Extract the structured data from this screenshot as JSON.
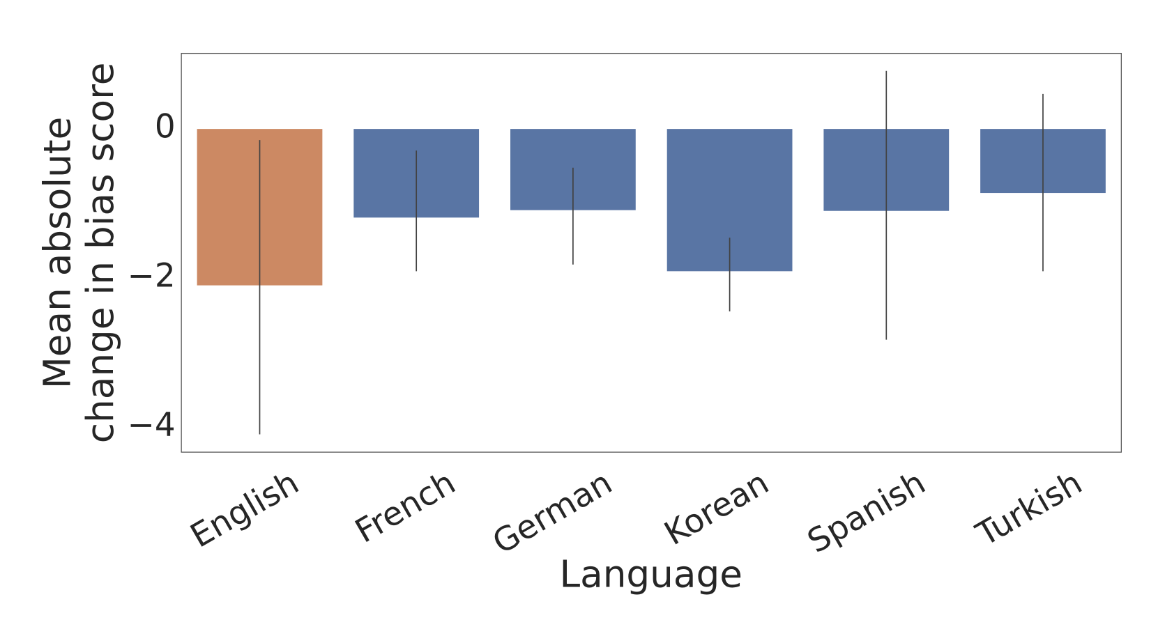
{
  "chart_data": {
    "type": "bar",
    "x_label": "Language",
    "y_label": [
      "Mean absolute",
      "change in bias score"
    ],
    "categories": [
      "English",
      "French",
      "German",
      "Korean",
      "Spanish",
      "Turkish"
    ],
    "values": [
      -2.1,
      -1.19,
      -1.09,
      -1.91,
      -1.1,
      -0.86
    ],
    "ci_low": [
      -4.1,
      -1.91,
      -1.82,
      -2.45,
      -2.83,
      -1.91
    ],
    "ci_high": [
      -0.15,
      -0.29,
      -0.52,
      -1.46,
      0.78,
      0.47
    ],
    "colors": [
      "#cc8963",
      "#5975a4",
      "#5975a4",
      "#5975a4",
      "#5975a4",
      "#5975a4"
    ],
    "ylim": [
      -4.34,
      1.015
    ],
    "yticks": [
      {
        "value": -4,
        "label": "−4"
      },
      {
        "value": -2,
        "label": "−2"
      },
      0
    ],
    "grid": false
  }
}
